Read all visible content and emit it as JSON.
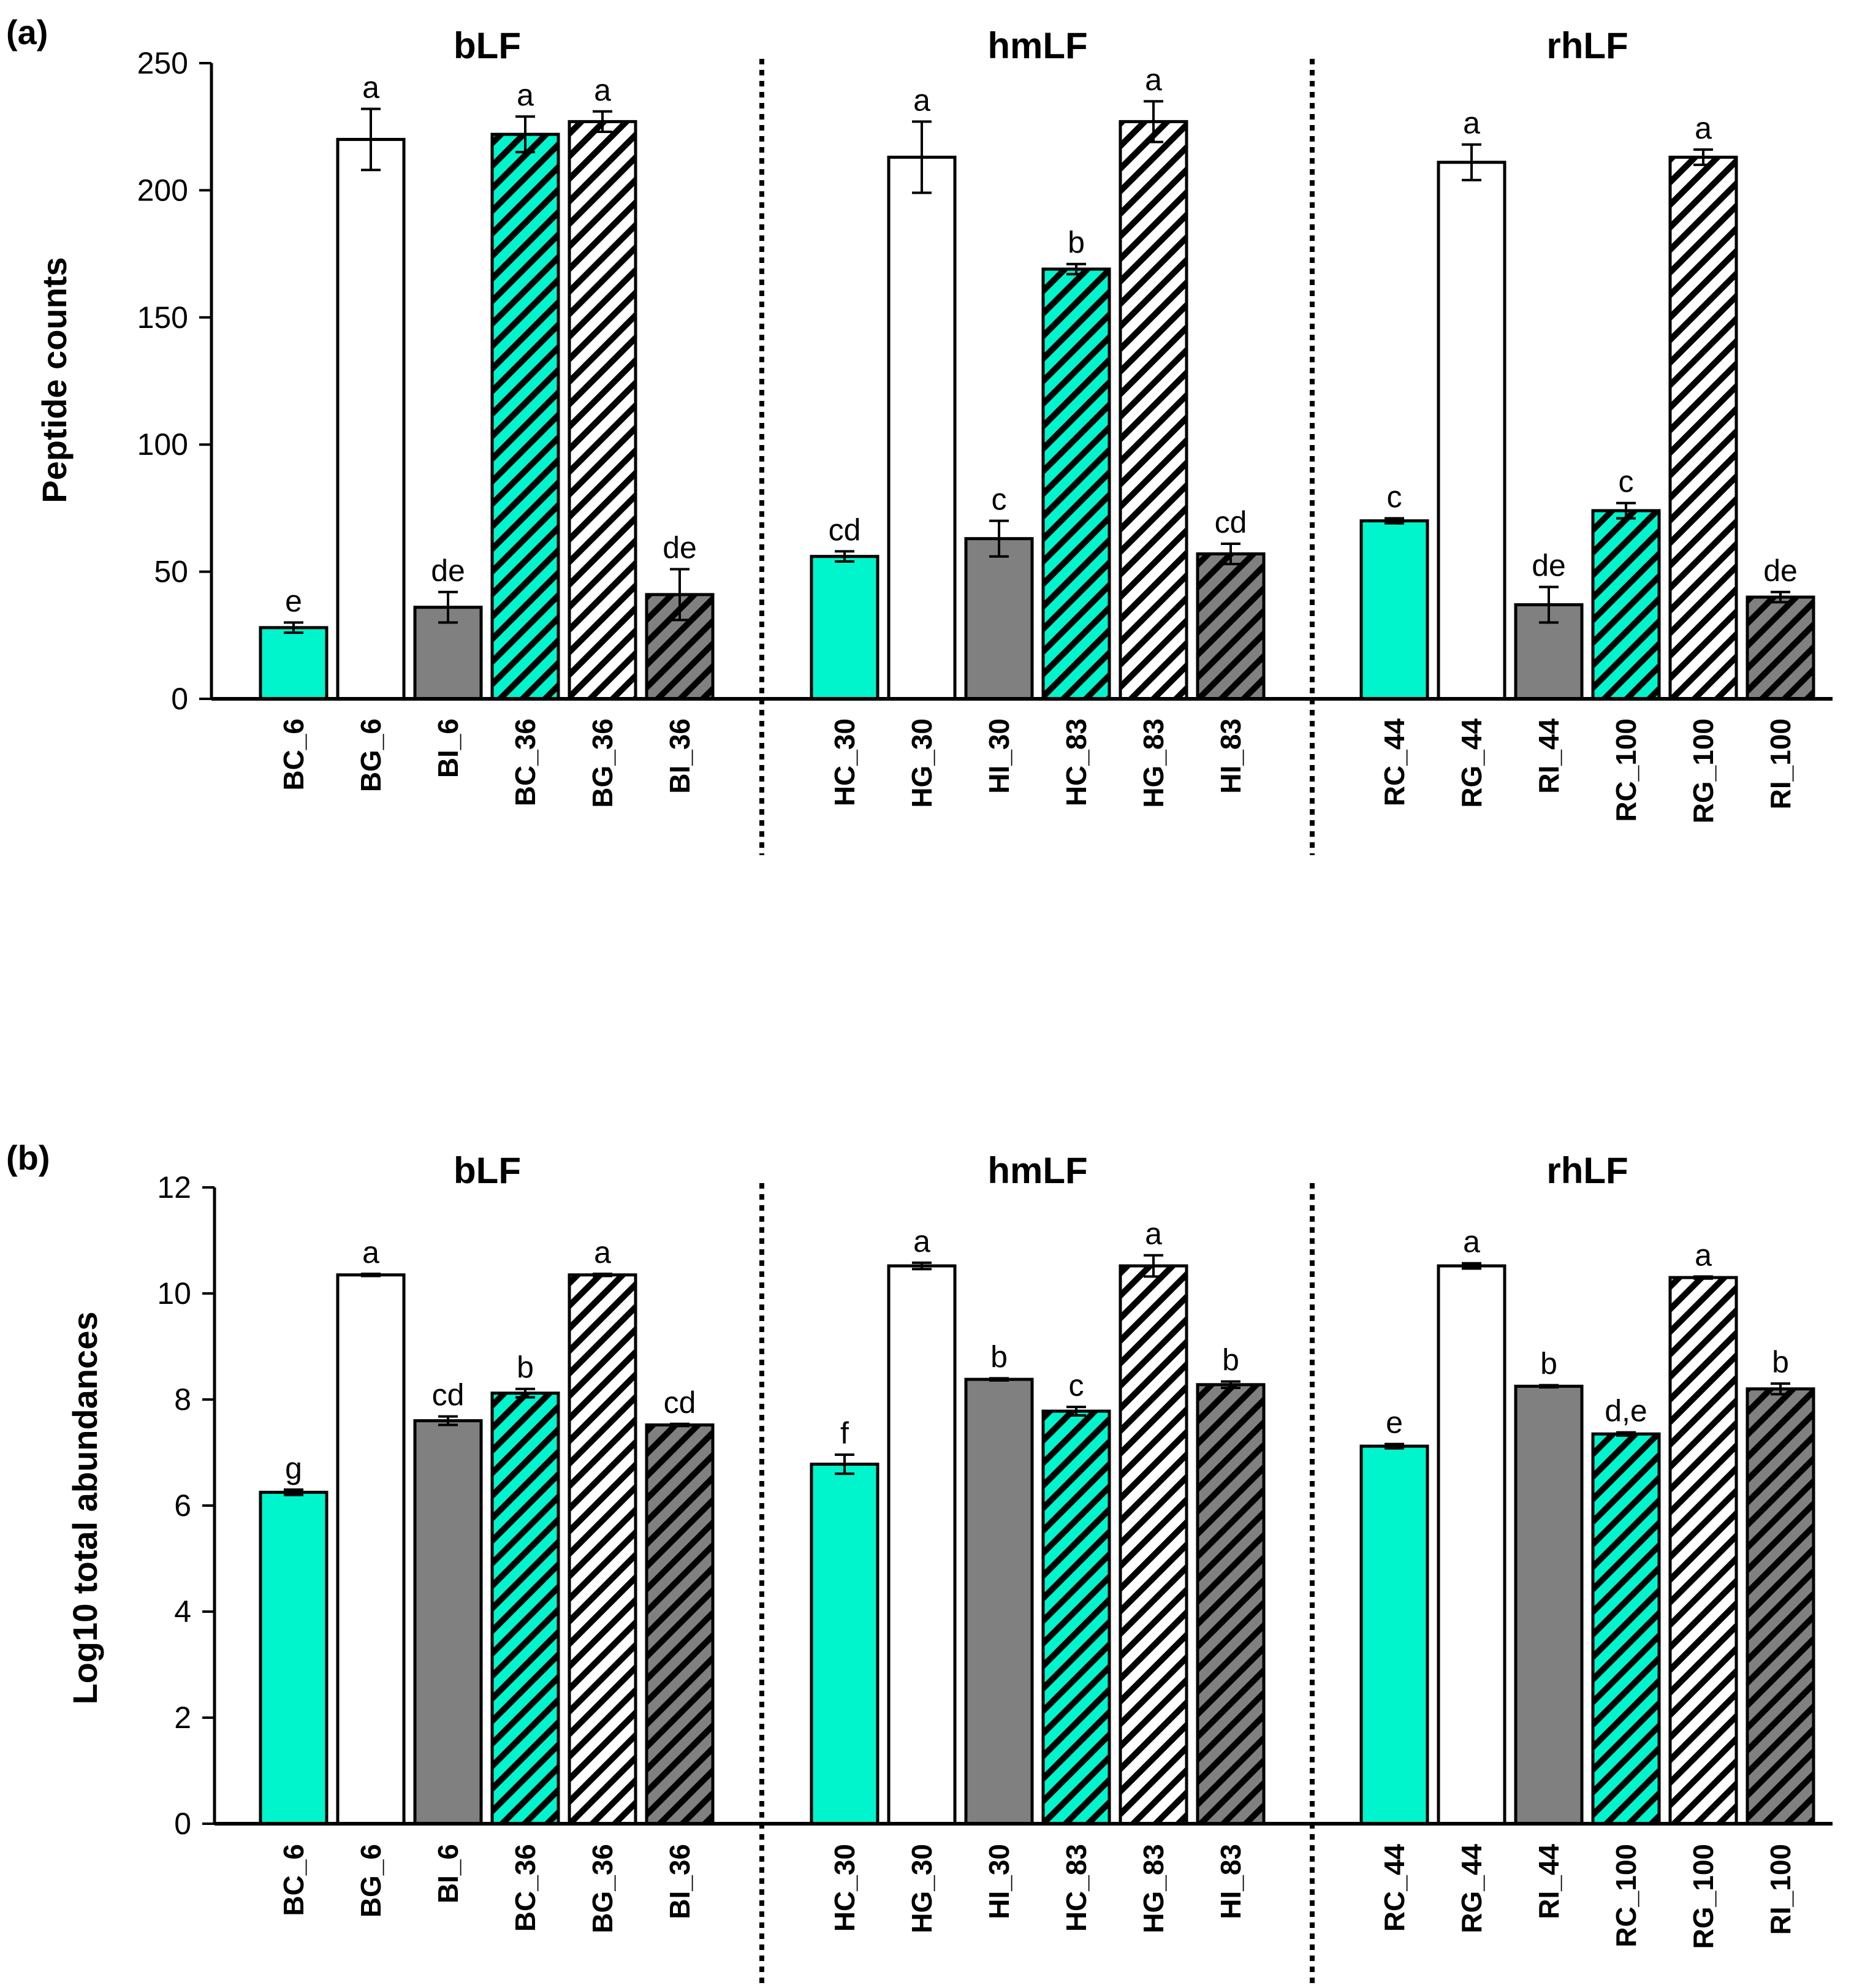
{
  "colors": {
    "C": "#00f5cc",
    "G": "#ffffff",
    "I": "#808080",
    "stroke": "#000000",
    "hatch": "#000000"
  },
  "chart_data": [
    {
      "panel": "(a)",
      "type": "bar",
      "title": "",
      "xlabel": "",
      "ylabel": "Peptide counts",
      "ylim": [
        0,
        250
      ],
      "yticks": [
        "0",
        "50",
        "100",
        "150",
        "200",
        "250"
      ],
      "grid": false,
      "groups": [
        {
          "title": "bLF",
          "bars": [
            {
              "label": "BC_6",
              "kind": "C",
              "hatched": false,
              "value": 28,
              "error": 2,
              "sig": "e"
            },
            {
              "label": "BG_6",
              "kind": "G",
              "hatched": false,
              "value": 220,
              "error": 12,
              "sig": "a"
            },
            {
              "label": "BI_6",
              "kind": "I",
              "hatched": false,
              "value": 36,
              "error": 6,
              "sig": "de"
            },
            {
              "label": "BC_36",
              "kind": "C",
              "hatched": true,
              "value": 222,
              "error": 7,
              "sig": "a"
            },
            {
              "label": "BG_36",
              "kind": "G",
              "hatched": true,
              "value": 227,
              "error": 4,
              "sig": "a"
            },
            {
              "label": "BI_36",
              "kind": "I",
              "hatched": true,
              "value": 41,
              "error": 10,
              "sig": "de"
            }
          ]
        },
        {
          "title": "hmLF",
          "bars": [
            {
              "label": "HC_30",
              "kind": "C",
              "hatched": false,
              "value": 56,
              "error": 2,
              "sig": "cd"
            },
            {
              "label": "HG_30",
              "kind": "G",
              "hatched": false,
              "value": 213,
              "error": 14,
              "sig": "a"
            },
            {
              "label": "HI_30",
              "kind": "I",
              "hatched": false,
              "value": 63,
              "error": 7,
              "sig": "c"
            },
            {
              "label": "HC_83",
              "kind": "C",
              "hatched": true,
              "value": 169,
              "error": 2,
              "sig": "b"
            },
            {
              "label": "HG_83",
              "kind": "G",
              "hatched": true,
              "value": 227,
              "error": 8,
              "sig": "a"
            },
            {
              "label": "HI_83",
              "kind": "I",
              "hatched": true,
              "value": 57,
              "error": 4,
              "sig": "cd"
            }
          ]
        },
        {
          "title": "rhLF",
          "bars": [
            {
              "label": "RC_44",
              "kind": "C",
              "hatched": false,
              "value": 70,
              "error": 1,
              "sig": "c"
            },
            {
              "label": "RG_44",
              "kind": "G",
              "hatched": false,
              "value": 211,
              "error": 7,
              "sig": "a"
            },
            {
              "label": "RI_44",
              "kind": "I",
              "hatched": false,
              "value": 37,
              "error": 7,
              "sig": "de"
            },
            {
              "label": "RC_100",
              "kind": "C",
              "hatched": true,
              "value": 74,
              "error": 3,
              "sig": "c"
            },
            {
              "label": "RG_100",
              "kind": "G",
              "hatched": true,
              "value": 213,
              "error": 3,
              "sig": "a"
            },
            {
              "label": "RI_100",
              "kind": "I",
              "hatched": true,
              "value": 40,
              "error": 2,
              "sig": "de"
            }
          ]
        }
      ]
    },
    {
      "panel": "(b)",
      "type": "bar",
      "title": "",
      "xlabel": "",
      "ylabel": "Log10 total abundances",
      "ylim": [
        0,
        12
      ],
      "yticks": [
        "0",
        "2",
        "4",
        "6",
        "8",
        "10",
        "12"
      ],
      "grid": false,
      "groups": [
        {
          "title": "bLF",
          "bars": [
            {
              "label": "BC_6",
              "kind": "C",
              "hatched": false,
              "value": 6.25,
              "error": 0.05,
              "sig": "g"
            },
            {
              "label": "BG_6",
              "kind": "G",
              "hatched": false,
              "value": 10.35,
              "error": 0.02,
              "sig": "a"
            },
            {
              "label": "BI_6",
              "kind": "I",
              "hatched": false,
              "value": 7.6,
              "error": 0.08,
              "sig": "cd"
            },
            {
              "label": "BC_36",
              "kind": "C",
              "hatched": true,
              "value": 8.12,
              "error": 0.08,
              "sig": "b"
            },
            {
              "label": "BG_36",
              "kind": "G",
              "hatched": true,
              "value": 10.35,
              "error": 0.02,
              "sig": "a"
            },
            {
              "label": "BI_36",
              "kind": "I",
              "hatched": true,
              "value": 7.52,
              "error": 0.02,
              "sig": "cd"
            }
          ]
        },
        {
          "title": "hmLF",
          "bars": [
            {
              "label": "HC_30",
              "kind": "C",
              "hatched": false,
              "value": 6.78,
              "error": 0.18,
              "sig": "f"
            },
            {
              "label": "HG_30",
              "kind": "G",
              "hatched": false,
              "value": 10.52,
              "error": 0.06,
              "sig": "a"
            },
            {
              "label": "HI_30",
              "kind": "I",
              "hatched": false,
              "value": 8.38,
              "error": 0.02,
              "sig": "b"
            },
            {
              "label": "HC_83",
              "kind": "C",
              "hatched": true,
              "value": 7.78,
              "error": 0.08,
              "sig": "c"
            },
            {
              "label": "HG_83",
              "kind": "G",
              "hatched": true,
              "value": 10.52,
              "error": 0.2,
              "sig": "a"
            },
            {
              "label": "HI_83",
              "kind": "I",
              "hatched": true,
              "value": 8.28,
              "error": 0.06,
              "sig": "b"
            }
          ]
        },
        {
          "title": "rhLF",
          "bars": [
            {
              "label": "RC_44",
              "kind": "C",
              "hatched": false,
              "value": 7.12,
              "error": 0.04,
              "sig": "e"
            },
            {
              "label": "RG_44",
              "kind": "G",
              "hatched": false,
              "value": 10.52,
              "error": 0.05,
              "sig": "a"
            },
            {
              "label": "RI_44",
              "kind": "I",
              "hatched": false,
              "value": 8.25,
              "error": 0.02,
              "sig": "b"
            },
            {
              "label": "RC_100",
              "kind": "C",
              "hatched": true,
              "value": 7.35,
              "error": 0.03,
              "sig": "d,e"
            },
            {
              "label": "RG_100",
              "kind": "G",
              "hatched": true,
              "value": 10.3,
              "error": 0.02,
              "sig": "a"
            },
            {
              "label": "RI_100",
              "kind": "I",
              "hatched": true,
              "value": 8.2,
              "error": 0.1,
              "sig": "b"
            }
          ]
        }
      ]
    }
  ]
}
